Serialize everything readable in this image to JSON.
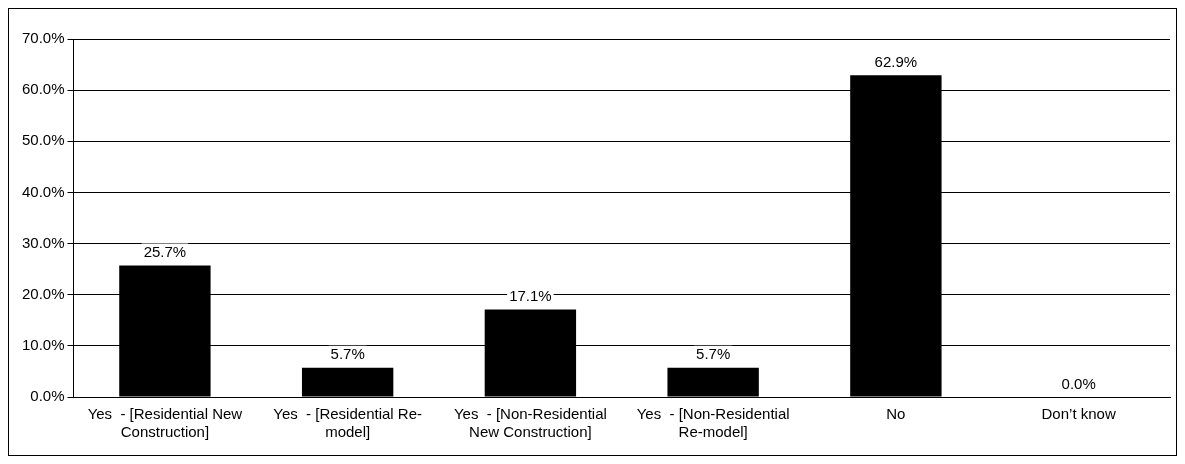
{
  "chart_data": {
    "type": "bar",
    "categories": [
      "Yes  - [Residential New Construction]",
      "Yes  - [Residential Re-model]",
      "Yes  - [Non-Residential New Construction]",
      "Yes  - [Non-Residential Re-model]",
      "No",
      "Don’t know"
    ],
    "values": [
      25.7,
      5.7,
      17.1,
      5.7,
      62.9,
      0.0
    ],
    "color": "#000000",
    "value_labels": [
      "25.7%",
      "5.7%",
      "17.1%",
      "5.7%",
      "62.9%",
      "0.0%"
    ],
    "ylim": [
      0,
      70
    ],
    "yticks": [
      {
        "value": 0,
        "label": "0.0%"
      },
      {
        "value": 10,
        "label": "10.0%"
      },
      {
        "value": 20,
        "label": "20.0%"
      },
      {
        "value": 30,
        "label": "30.0%"
      },
      {
        "value": 40,
        "label": "40.0%"
      },
      {
        "value": 50,
        "label": "50.0%"
      },
      {
        "value": 60,
        "label": "60.0%"
      },
      {
        "value": 70,
        "label": "70.0%"
      }
    ],
    "grid": "y",
    "legend": false
  }
}
